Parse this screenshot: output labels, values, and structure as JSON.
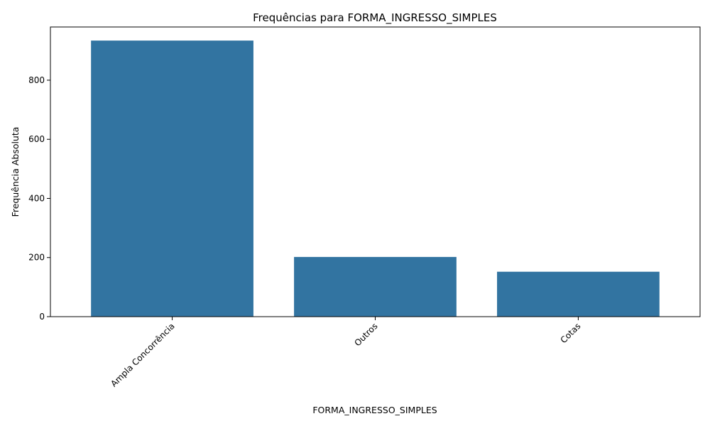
{
  "chart_data": {
    "type": "bar",
    "title": "Frequências para FORMA_INGRESSO_SIMPLES",
    "xlabel": "FORMA_INGRESSO_SIMPLES",
    "ylabel": "Frequência Absoluta",
    "categories": [
      "Ampla Concorrência",
      "Outros",
      "Cotas"
    ],
    "values": [
      934,
      202,
      152
    ],
    "ylim": [
      0,
      980
    ],
    "yticks": [
      0,
      200,
      400,
      600,
      800
    ],
    "x_tick_rotation": 45,
    "bar_color": "#3274a1",
    "grid": false,
    "legend": "none"
  }
}
